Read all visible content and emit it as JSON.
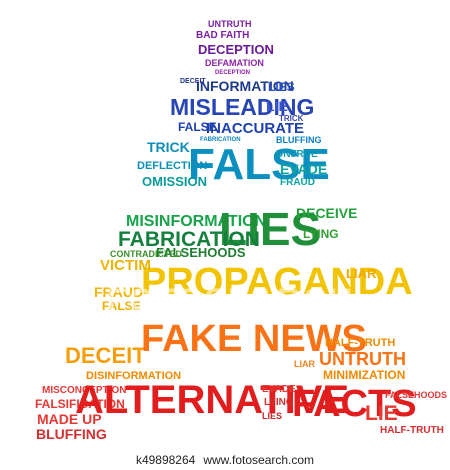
{
  "cloud": {
    "words": [
      {
        "text": "UNTRUTH",
        "color": "#7a1fa2"
      },
      {
        "text": "BAD FAITH",
        "color": "#7a1fa2"
      },
      {
        "text": "DECEPTION",
        "color": "#6a1b9a"
      },
      {
        "text": "DEFAMATION",
        "color": "#8e24aa"
      },
      {
        "text": "DECEPTION",
        "color": "#8e24aa"
      },
      {
        "text": "DECEIT",
        "color": "#283593"
      },
      {
        "text": "INFORMATION",
        "color": "#1e3a8a"
      },
      {
        "text": "LIES",
        "color": "#2b50c8"
      },
      {
        "text": "MISLEADING",
        "color": "#2745b5"
      },
      {
        "text": "LIE",
        "color": "#3a56d4"
      },
      {
        "text": "TRICK",
        "color": "#3949ab"
      },
      {
        "text": "FALSE",
        "color": "#1e40af"
      },
      {
        "text": "INACCURATE",
        "color": "#1e40af"
      },
      {
        "text": "FABRICATION",
        "color": "#0b7fc4"
      },
      {
        "text": "BLUFFING",
        "color": "#0b7fc4"
      },
      {
        "text": "TRICK",
        "color": "#0e8fb8"
      },
      {
        "text": "FALSE",
        "color": "#0a8fc0"
      },
      {
        "text": "UNTRUE",
        "color": "#0e9bb5"
      },
      {
        "text": "EVADE",
        "color": "#0ea5a0"
      },
      {
        "text": "DEFLECTION",
        "color": "#0e8fb8"
      },
      {
        "text": "OMISSION",
        "color": "#0b9a9a"
      },
      {
        "text": "FRAUD",
        "color": "#0aa3a3"
      },
      {
        "text": "MISINFORMATION",
        "color": "#16a34a"
      },
      {
        "text": "LIES",
        "color": "#1f8f3a"
      },
      {
        "text": "FABRICATION",
        "color": "#15803d"
      },
      {
        "text": "DECEIVE",
        "color": "#22a13a"
      },
      {
        "text": "LYING",
        "color": "#2f9e2f"
      },
      {
        "text": "FALSEHOODS",
        "color": "#1e7d32"
      },
      {
        "text": "CONTRADICTED",
        "color": "#3a8f2a"
      },
      {
        "text": "PROPAGANDA",
        "color": "#f2c300"
      },
      {
        "text": "VICTIM",
        "color": "#eab308"
      },
      {
        "text": "FRAUD",
        "color": "#f5b400"
      },
      {
        "text": "LIAR",
        "color": "#f2a900"
      },
      {
        "text": "FALSE",
        "color": "#f0b000"
      },
      {
        "text": "DECEIT",
        "color": "#f59e0b"
      },
      {
        "text": "FAKE NEWS",
        "color": "#f97316"
      },
      {
        "text": "UNTRUTH",
        "color": "#f97316"
      },
      {
        "text": "HALF-TRUTH",
        "color": "#f08a00"
      },
      {
        "text": "MINIMIZATION",
        "color": "#f08a00"
      },
      {
        "text": "DISINFORMATION",
        "color": "#f08a00"
      },
      {
        "text": "LIAR",
        "color": "#f58220"
      },
      {
        "text": "MISCONCEPTION",
        "color": "#e53935"
      },
      {
        "text": "FALSIFICATION",
        "color": "#e53935"
      },
      {
        "text": "MADE UP",
        "color": "#e53935"
      },
      {
        "text": "BLUFFING",
        "color": "#d32f2f"
      },
      {
        "text": "ALTERNATIVE",
        "color": "#e11d1d"
      },
      {
        "text": "FACTS",
        "color": "#e11d1d"
      },
      {
        "text": "LIE",
        "color": "#e53935"
      },
      {
        "text": "EVADE",
        "color": "#e53935"
      },
      {
        "text": "LYING",
        "color": "#d32f2f"
      },
      {
        "text": "FALSEHOODS",
        "color": "#e53935"
      },
      {
        "text": "HALF-TRUTH",
        "color": "#d32f2f"
      },
      {
        "text": "LIES",
        "color": "#c62828"
      }
    ]
  },
  "watermark": "FOTOSEARCH",
  "footer": {
    "id": "k49898264",
    "site": "www.fotosearch.com"
  }
}
